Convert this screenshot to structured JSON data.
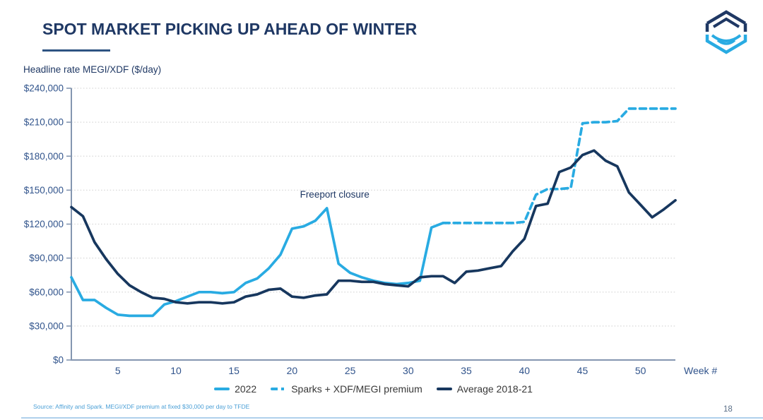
{
  "page": {
    "title": "SPOT MARKET PICKING UP AHEAD OF WINTER",
    "chart_caption": "Headline rate MEGI/XDF ($/day)",
    "source_note": "Source: Affinity and Spark. MEGI/XDF premium at fixed $30,000 per day to TFDE",
    "page_number": "18"
  },
  "colors": {
    "title_navy": "#1F3864",
    "cyan": "#29ABE2",
    "navy_line": "#17375E",
    "axis": "#8496B0",
    "tick_label": "#31548C",
    "gridline": "#D9D9D9",
    "legend_text": "#373737",
    "source_blue": "#4A9FD6",
    "footer_rule": "#AFD0EB"
  },
  "chart_data": {
    "type": "line",
    "title": "SPOT MARKET PICKING UP AHEAD OF WINTER",
    "ylabel": "Headline rate MEGI/XDF ($/day)",
    "xlabel": "Week #",
    "xlim": [
      1,
      53
    ],
    "ylim": [
      0,
      240000
    ],
    "grid": "dotted-horizontal",
    "legend_position": "bottom-center",
    "y_ticks": [
      0,
      30000,
      60000,
      90000,
      120000,
      150000,
      180000,
      210000,
      240000
    ],
    "y_tick_labels": [
      "$0",
      "$30,000",
      "$60,000",
      "$90,000",
      "$120,000",
      "$150,000",
      "$180,000",
      "$210,000",
      "$240,000"
    ],
    "x_ticks": [
      5,
      10,
      15,
      20,
      25,
      30,
      35,
      40,
      45,
      50
    ],
    "annotations": [
      {
        "text": "Freeport closure",
        "week": 23,
        "value": 134000
      }
    ],
    "series": [
      {
        "name": "2022",
        "style": "solid",
        "color": "#29ABE2",
        "week_start": 1,
        "values": [
          73000,
          53000,
          53000,
          46000,
          40000,
          39000,
          39000,
          39000,
          49000,
          52000,
          56000,
          60000,
          60000,
          59000,
          60000,
          68000,
          72000,
          81000,
          93000,
          116000,
          118000,
          123000,
          134000,
          85000,
          77000,
          73000,
          70000,
          68000,
          67000,
          68000,
          70000,
          117000,
          121000
        ]
      },
      {
        "name": "Sparks + XDF/MEGI premium",
        "style": "dashed",
        "color": "#29ABE2",
        "week_start": 33,
        "values": [
          121000,
          121000,
          121000,
          121000,
          121000,
          121000,
          121000,
          122000,
          146000,
          151000,
          151000,
          152000,
          209000,
          210000,
          210000,
          211000,
          222000,
          222000,
          222000,
          222000,
          222000
        ]
      },
      {
        "name": "Average 2018-21",
        "style": "solid",
        "color": "#17375E",
        "week_start": 1,
        "values": [
          135000,
          127000,
          104000,
          89000,
          76000,
          66000,
          60000,
          55000,
          54000,
          51000,
          50000,
          51000,
          51000,
          50000,
          51000,
          56000,
          58000,
          62000,
          63000,
          56000,
          55000,
          57000,
          58000,
          70000,
          70000,
          69000,
          69000,
          67000,
          66000,
          65000,
          73000,
          74000,
          74000,
          68000,
          78000,
          79000,
          81000,
          83000,
          96000,
          107000,
          136000,
          138000,
          166000,
          170000,
          181000,
          185000,
          176000,
          171000,
          148000,
          137000,
          126000,
          133000,
          141000
        ]
      }
    ]
  }
}
